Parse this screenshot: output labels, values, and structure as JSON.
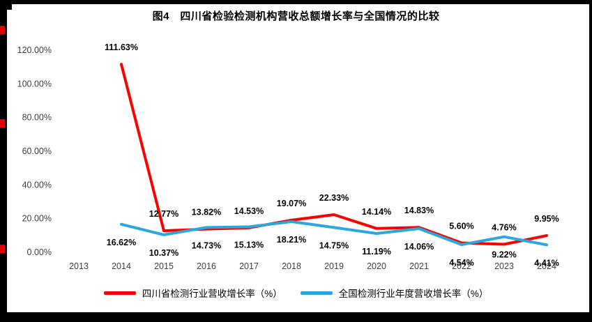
{
  "chart_data": {
    "type": "line",
    "title": "图4　四川省检验检测机构营收总额增长率与全国情况的比较",
    "categories": [
      "2013",
      "2014",
      "2015",
      "2016",
      "2017",
      "2018",
      "2019",
      "2020",
      "2021",
      "2022",
      "2023",
      "2024"
    ],
    "series": [
      {
        "name": "四川省检测行业营收增长率（%）",
        "color": "#fe0000",
        "values": [
          null,
          111.63,
          12.77,
          13.82,
          14.53,
          19.07,
          22.33,
          14.14,
          14.83,
          5.6,
          4.76,
          9.95
        ],
        "labels": [
          "",
          "111.63%",
          "12.77%",
          "13.82%",
          "14.53%",
          "19.07%",
          "22.33%",
          "14.14%",
          "14.83%",
          "5.60%",
          "4.76%",
          "9.95%"
        ],
        "label_side": "above"
      },
      {
        "name": "全国检测行业年度营收增长率（%）",
        "color": "#2aa7dc",
        "values": [
          null,
          16.62,
          10.37,
          14.73,
          15.13,
          18.21,
          14.75,
          11.19,
          14.06,
          4.54,
          9.22,
          4.41
        ],
        "labels": [
          "",
          "16.62%",
          "10.37%",
          "14.73%",
          "15.13%",
          "18.21%",
          "14.75%",
          "11.19%",
          "14.06%",
          "4.54%",
          "9.22%",
          "4.41%"
        ],
        "label_side": "below"
      }
    ],
    "y_ticks": [
      "0.00%",
      "20.00%",
      "40.00%",
      "60.00%",
      "80.00%",
      "100.00%",
      "120.00%"
    ],
    "ylim": [
      0,
      120
    ],
    "grid": false,
    "legend_position": "bottom",
    "tick_color": "#3f3f3f",
    "label_color": "#000000"
  }
}
